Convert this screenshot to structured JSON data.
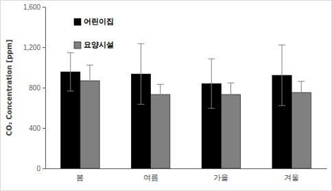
{
  "chart_data": {
    "type": "bar",
    "y_label": "CO₂ Concentration [ppm]",
    "categories": [
      "봄",
      "여름",
      "가을",
      "겨울"
    ],
    "series": [
      {
        "name": "어린이집",
        "color": "#000000",
        "values": [
          956,
          935,
          840,
          922
        ],
        "errors": [
          190,
          300,
          245,
          300
        ]
      },
      {
        "name": "요양시설",
        "color": "#808080",
        "values": [
          868,
          732,
          732,
          752
        ],
        "errors": [
          155,
          100,
          115,
          110
        ]
      }
    ],
    "ylim": [
      0,
      1600
    ],
    "yticks": [
      0,
      400,
      800,
      {
        "value": 1200,
        "label": "1,200"
      },
      {
        "value": 1600,
        "label": "1,600"
      }
    ],
    "grid": false,
    "legend": "upper left"
  }
}
